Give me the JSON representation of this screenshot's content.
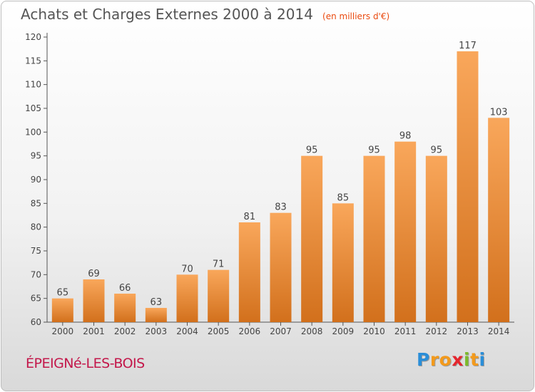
{
  "chart_data": {
    "type": "bar",
    "title": "Achats et Charges Externes 2000 à 2014",
    "subtitle": "(en milliers d'€)",
    "categories": [
      "2000",
      "2001",
      "2002",
      "2003",
      "2004",
      "2005",
      "2006",
      "2007",
      "2008",
      "2009",
      "2010",
      "2011",
      "2012",
      "2013",
      "2014"
    ],
    "values": [
      65,
      69,
      66,
      63,
      70,
      71,
      81,
      83,
      95,
      85,
      95,
      98,
      95,
      117,
      103
    ],
    "ylim": [
      60,
      120
    ],
    "yticks": [
      60,
      65,
      70,
      75,
      80,
      85,
      90,
      95,
      100,
      105,
      110,
      115,
      120
    ],
    "grid": false,
    "bar_color_top": "#f9a75b",
    "bar_color_bottom": "#d2701c"
  },
  "commune": "ÉPEIGNé-LES-BOIS",
  "logo": {
    "letters": [
      "P",
      "r",
      "o",
      "x",
      "i",
      "t",
      "i"
    ],
    "colors": [
      "#2a8ed8",
      "#f39a1c",
      "#f39a1c",
      "#e5262e",
      "#7cba2a",
      "#f39a1c",
      "#2a8ed8"
    ]
  }
}
